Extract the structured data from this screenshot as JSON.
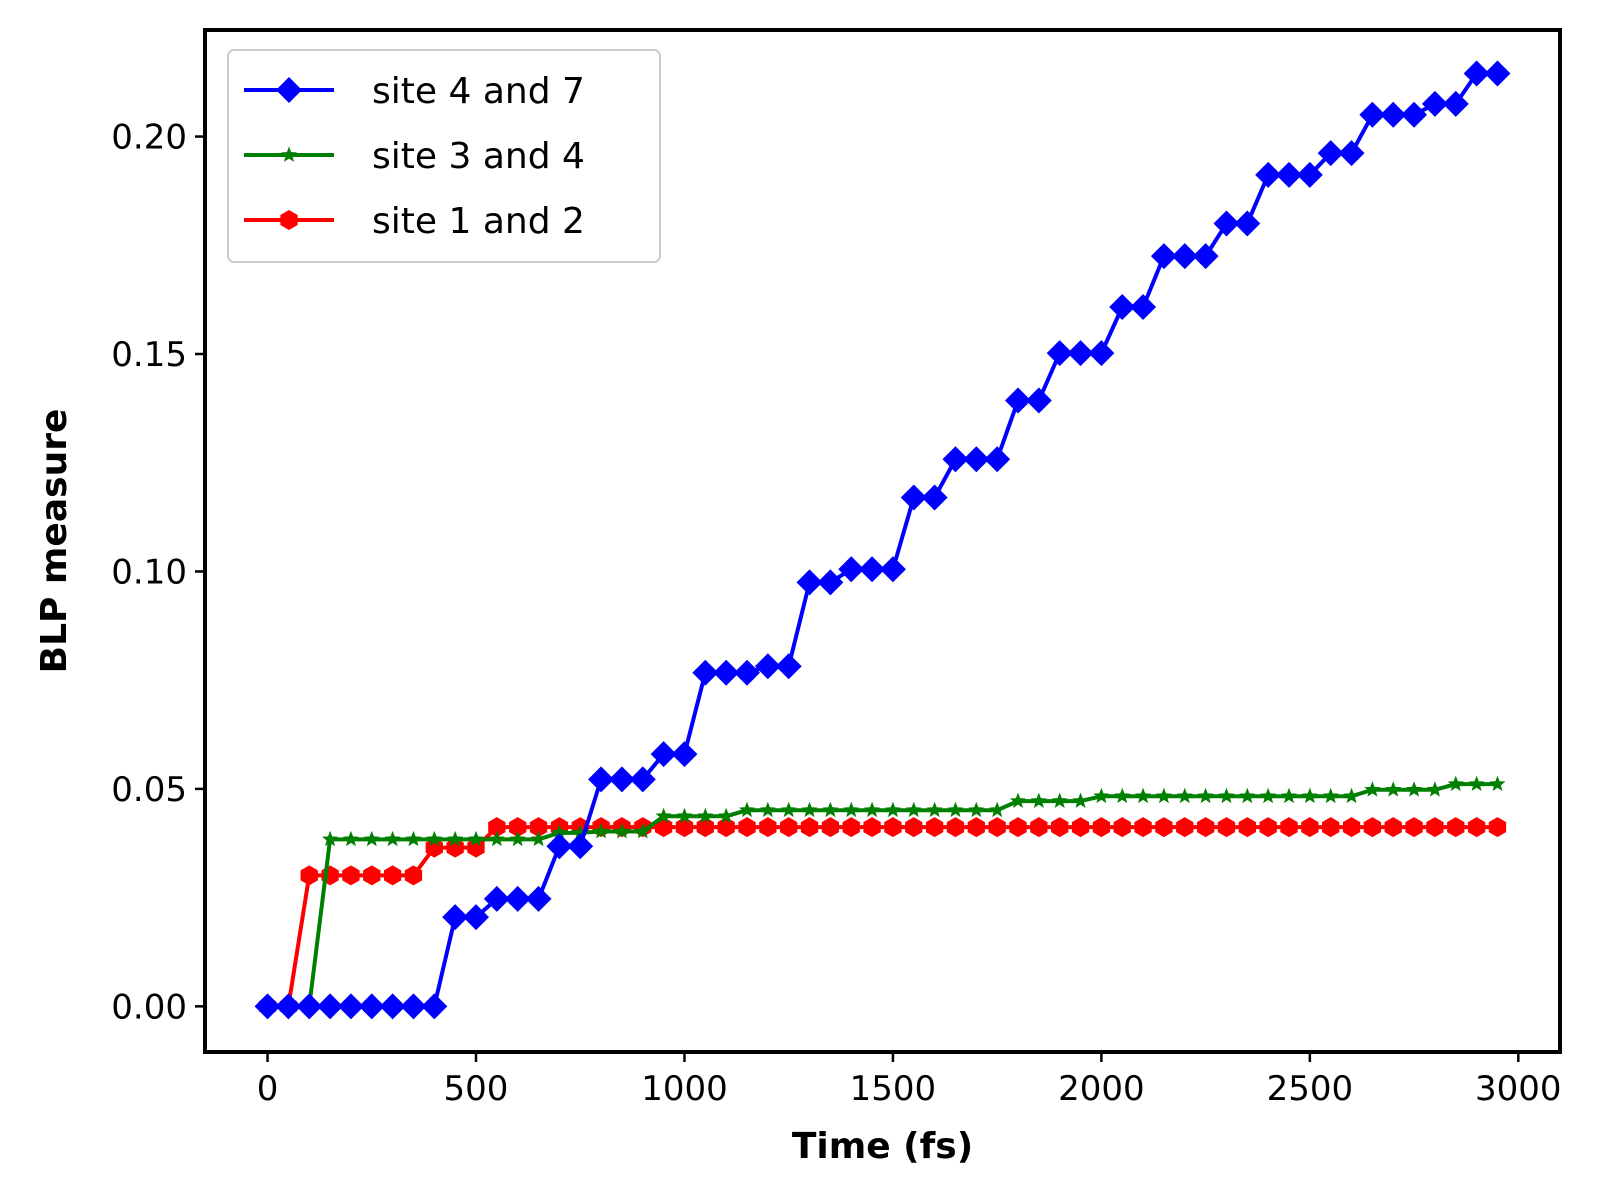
{
  "chart_data": {
    "type": "line",
    "title": "",
    "xlabel": "Time (fs)",
    "ylabel": "BLP measure",
    "xlim": [
      -150,
      3100
    ],
    "ylim": [
      -0.0105,
      0.2245
    ],
    "xticks": [
      0,
      500,
      1000,
      1500,
      2000,
      2500,
      3000
    ],
    "xtick_labels": [
      "0",
      "500",
      "1000",
      "1500",
      "2000",
      "2500",
      "3000"
    ],
    "yticks": [
      0.0,
      0.05,
      0.1,
      0.15,
      0.2
    ],
    "ytick_labels": [
      "0.00",
      "0.05",
      "0.10",
      "0.15",
      "0.20"
    ],
    "grid": false,
    "legend_position": "upper-left",
    "x": [
      0,
      50,
      100,
      150,
      200,
      250,
      300,
      350,
      400,
      450,
      500,
      550,
      600,
      650,
      700,
      750,
      800,
      850,
      900,
      950,
      1000,
      1050,
      1100,
      1150,
      1200,
      1250,
      1300,
      1350,
      1400,
      1450,
      1500,
      1550,
      1600,
      1650,
      1700,
      1750,
      1800,
      1850,
      1900,
      1950,
      2000,
      2050,
      2100,
      2150,
      2200,
      2250,
      2300,
      2350,
      2400,
      2450,
      2500,
      2550,
      2600,
      2650,
      2700,
      2750,
      2800,
      2850,
      2900,
      2950
    ],
    "series": [
      {
        "name": "site 4 and 7",
        "color": "#0000ff",
        "marker": "diamond",
        "values": [
          0.0,
          0.0,
          0.0,
          0.0,
          0.0,
          0.0,
          0.0,
          0.0,
          0.0,
          0.0205,
          0.0205,
          0.0247,
          0.0247,
          0.0247,
          0.0368,
          0.0368,
          0.0522,
          0.0522,
          0.0522,
          0.058,
          0.058,
          0.0767,
          0.0767,
          0.0767,
          0.0782,
          0.0782,
          0.0975,
          0.0975,
          0.1005,
          0.1005,
          0.1005,
          0.117,
          0.117,
          0.1258,
          0.1258,
          0.1258,
          0.1393,
          0.1393,
          0.1502,
          0.1502,
          0.1502,
          0.1608,
          0.1608,
          0.1725,
          0.1725,
          0.1725,
          0.18,
          0.18,
          0.1912,
          0.1912,
          0.1912,
          0.1962,
          0.1962,
          0.205,
          0.205,
          0.205,
          0.2075,
          0.2075,
          0.2145,
          0.2145
        ]
      },
      {
        "name": "site 3 and 4",
        "color": "#008000",
        "marker": "star",
        "values": [
          0.0,
          0.0,
          0.0,
          0.0384,
          0.0384,
          0.0384,
          0.0384,
          0.0384,
          0.0384,
          0.0384,
          0.0384,
          0.0384,
          0.0384,
          0.0384,
          0.0399,
          0.0399,
          0.0402,
          0.0402,
          0.0402,
          0.0437,
          0.0437,
          0.0437,
          0.0437,
          0.0451,
          0.0451,
          0.0451,
          0.0451,
          0.0451,
          0.0451,
          0.0451,
          0.0451,
          0.0451,
          0.0451,
          0.0451,
          0.0451,
          0.0451,
          0.0472,
          0.0472,
          0.0472,
          0.0472,
          0.0483,
          0.0483,
          0.0483,
          0.0483,
          0.0483,
          0.0483,
          0.0483,
          0.0483,
          0.0483,
          0.0483,
          0.0483,
          0.0483,
          0.0483,
          0.0498,
          0.0498,
          0.0498,
          0.0498,
          0.0511,
          0.0511,
          0.0511
        ]
      },
      {
        "name": "site 1 and 2",
        "color": "#ff0000",
        "marker": "hexagon",
        "values": [
          0.0,
          0.0,
          0.0301,
          0.0301,
          0.0301,
          0.0301,
          0.0301,
          0.0301,
          0.0365,
          0.0365,
          0.0365,
          0.0412,
          0.0412,
          0.0412,
          0.0412,
          0.0412,
          0.0412,
          0.0412,
          0.0412,
          0.0412,
          0.0412,
          0.0412,
          0.0412,
          0.0412,
          0.0412,
          0.0412,
          0.0412,
          0.0412,
          0.0412,
          0.0412,
          0.0412,
          0.0412,
          0.0412,
          0.0412,
          0.0412,
          0.0412,
          0.0412,
          0.0412,
          0.0412,
          0.0412,
          0.0412,
          0.0412,
          0.0412,
          0.0412,
          0.0412,
          0.0412,
          0.0412,
          0.0412,
          0.0412,
          0.0412,
          0.0412,
          0.0412,
          0.0412,
          0.0412,
          0.0412,
          0.0412,
          0.0412,
          0.0412,
          0.0412,
          0.0412
        ]
      }
    ]
  }
}
